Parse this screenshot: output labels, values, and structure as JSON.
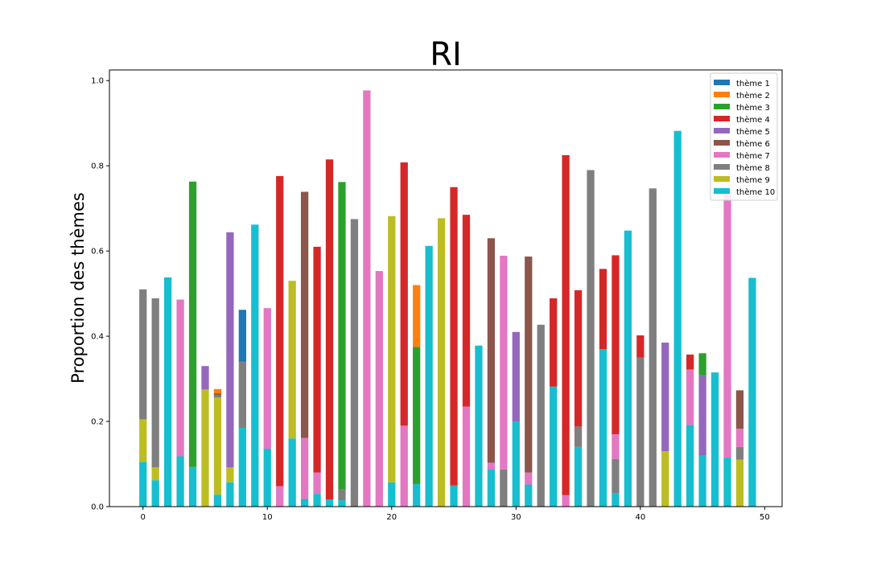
{
  "chart_data": {
    "type": "bar",
    "stacked": true,
    "title": "RI",
    "xlabel": "",
    "ylabel": "Proportion des thèmes",
    "xlim": [
      -2.7,
      51.4
    ],
    "ylim": [
      0,
      1.025
    ],
    "xticks": [
      0,
      10,
      20,
      30,
      40,
      50
    ],
    "yticks": [
      0.0,
      0.2,
      0.4,
      0.6,
      0.8,
      1.0
    ],
    "ytick_labels": [
      "0.0",
      "0.2",
      "0.4",
      "0.6",
      "0.8",
      "1.0"
    ],
    "grid": false,
    "legend": "top-right",
    "x": [
      0,
      1,
      2,
      3,
      4,
      5,
      6,
      7,
      8,
      9,
      10,
      11,
      12,
      13,
      14,
      15,
      16,
      17,
      18,
      19,
      20,
      21,
      22,
      23,
      24,
      25,
      26,
      27,
      28,
      29,
      30,
      31,
      32,
      33,
      34,
      35,
      36,
      37,
      38,
      39,
      40,
      41,
      42,
      43,
      44,
      45,
      46,
      47,
      48,
      49
    ],
    "series": [
      {
        "name": "thème 10",
        "color": "#17becf",
        "values": [
          0.105,
          0.062,
          0.538,
          0.118,
          0.093,
          0,
          0.028,
          0.057,
          0.185,
          0.662,
          0.136,
          0,
          0.16,
          0.018,
          0.03,
          0.017,
          0.015,
          0,
          0,
          0,
          0.057,
          0,
          0.053,
          0.612,
          0,
          0.05,
          0,
          0.378,
          0.088,
          0,
          0.2,
          0.052,
          0,
          0.282,
          0,
          0.14,
          0,
          0.37,
          0.032,
          0.648,
          0,
          0,
          0,
          0.882,
          0.192,
          0.12,
          0.315,
          0.115,
          0,
          0.537
        ]
      },
      {
        "name": "thème 9",
        "color": "#bcbd22",
        "values": [
          0.1,
          0.03,
          0,
          0,
          0,
          0.275,
          0.228,
          0.035,
          0,
          0,
          0,
          0,
          0.37,
          0,
          0,
          0,
          0,
          0,
          0,
          0,
          0.625,
          0,
          0,
          0,
          0.677,
          0,
          0,
          0,
          0,
          0,
          0,
          0,
          0,
          0,
          0,
          0,
          0,
          0,
          0,
          0,
          0,
          0,
          0.13,
          0,
          0,
          0,
          0,
          0,
          0.11,
          0
        ]
      },
      {
        "name": "thème 8",
        "color": "#7f7f7f",
        "values": [
          0.305,
          0.397,
          0,
          0,
          0,
          0,
          0.005,
          0,
          0.155,
          0,
          0,
          0,
          0,
          0,
          0,
          0,
          0.025,
          0.675,
          0,
          0,
          0,
          0,
          0,
          0,
          0,
          0,
          0,
          0,
          0,
          0.087,
          0,
          0,
          0.427,
          0,
          0,
          0.048,
          0.79,
          0,
          0.08,
          0,
          0.35,
          0.747,
          0,
          0,
          0,
          0,
          0,
          0,
          0.03,
          0
        ]
      },
      {
        "name": "thème 7",
        "color": "#e377c2",
        "values": [
          0,
          0,
          0,
          0.368,
          0,
          0,
          0,
          0,
          0,
          0,
          0.33,
          0.048,
          0,
          0.143,
          0.05,
          0,
          0,
          0,
          0.977,
          0.553,
          0,
          0.19,
          0,
          0,
          0,
          0,
          0.235,
          0,
          0.015,
          0.502,
          0,
          0.028,
          0,
          0,
          0.027,
          0,
          0,
          0,
          0.058,
          0,
          0,
          0,
          0,
          0,
          0.13,
          0,
          0,
          0.62,
          0.043,
          0
        ]
      },
      {
        "name": "thème 6",
        "color": "#8c564b",
        "values": [
          0,
          0,
          0,
          0,
          0,
          0,
          0.005,
          0,
          0,
          0,
          0,
          0,
          0,
          0.578,
          0,
          0,
          0,
          0,
          0,
          0,
          0,
          0,
          0,
          0,
          0,
          0,
          0,
          0,
          0.527,
          0,
          0,
          0.507,
          0,
          0,
          0,
          0,
          0,
          0,
          0,
          0,
          0,
          0,
          0,
          0,
          0,
          0,
          0,
          0,
          0.09,
          0
        ]
      },
      {
        "name": "thème 5",
        "color": "#9467bd",
        "values": [
          0,
          0,
          0,
          0,
          0,
          0.055,
          0,
          0.552,
          0,
          0,
          0,
          0,
          0,
          0,
          0,
          0,
          0,
          0,
          0,
          0,
          0,
          0,
          0,
          0,
          0,
          0,
          0,
          0,
          0,
          0,
          0.21,
          0,
          0,
          0,
          0,
          0,
          0,
          0,
          0,
          0,
          0,
          0,
          0.255,
          0,
          0,
          0.188,
          0,
          0,
          0,
          0
        ]
      },
      {
        "name": "thème 4",
        "color": "#d62728",
        "values": [
          0,
          0,
          0,
          0,
          0,
          0,
          0,
          0,
          0,
          0,
          0,
          0.728,
          0,
          0,
          0.53,
          0.798,
          0,
          0,
          0,
          0,
          0,
          0.618,
          0,
          0,
          0,
          0.7,
          0.45,
          0,
          0,
          0,
          0,
          0,
          0,
          0.207,
          0.798,
          0.32,
          0,
          0.188,
          0.42,
          0,
          0.052,
          0,
          0,
          0,
          0.035,
          0,
          0,
          0,
          0,
          0
        ]
      },
      {
        "name": "thème 3",
        "color": "#2ca02c",
        "values": [
          0,
          0,
          0,
          0,
          0.67,
          0,
          0,
          0,
          0,
          0,
          0,
          0,
          0,
          0,
          0,
          0,
          0.722,
          0,
          0,
          0,
          0,
          0,
          0.322,
          0,
          0,
          0,
          0,
          0,
          0,
          0,
          0,
          0,
          0,
          0,
          0,
          0,
          0,
          0,
          0,
          0,
          0,
          0,
          0,
          0,
          0,
          0.052,
          0,
          0,
          0,
          0
        ]
      },
      {
        "name": "thème 2",
        "color": "#ff7f0e",
        "values": [
          0,
          0,
          0,
          0,
          0,
          0,
          0.01,
          0,
          0,
          0,
          0,
          0,
          0,
          0,
          0,
          0,
          0,
          0,
          0,
          0,
          0,
          0,
          0.145,
          0,
          0,
          0,
          0,
          0,
          0,
          0,
          0,
          0,
          0,
          0,
          0,
          0,
          0,
          0,
          0,
          0,
          0,
          0,
          0,
          0,
          0,
          0,
          0,
          0,
          0,
          0
        ]
      },
      {
        "name": "thème 1",
        "color": "#1f77b4",
        "values": [
          0,
          0,
          0,
          0,
          0,
          0,
          0,
          0,
          0.122,
          0,
          0,
          0,
          0,
          0,
          0,
          0,
          0,
          0,
          0,
          0,
          0,
          0,
          0,
          0,
          0,
          0,
          0,
          0,
          0,
          0,
          0,
          0,
          0,
          0,
          0,
          0,
          0,
          0,
          0,
          0,
          0,
          0,
          0,
          0,
          0,
          0,
          0,
          0,
          0,
          0
        ]
      }
    ],
    "legend_entries": [
      {
        "name": "thème 1",
        "color": "#1f77b4"
      },
      {
        "name": "thème 2",
        "color": "#ff7f0e"
      },
      {
        "name": "thème 3",
        "color": "#2ca02c"
      },
      {
        "name": "thème 4",
        "color": "#d62728"
      },
      {
        "name": "thème 5",
        "color": "#9467bd"
      },
      {
        "name": "thème 6",
        "color": "#8c564b"
      },
      {
        "name": "thème 7",
        "color": "#e377c2"
      },
      {
        "name": "thème 8",
        "color": "#7f7f7f"
      },
      {
        "name": "thème 9",
        "color": "#bcbd22"
      },
      {
        "name": "thème 10",
        "color": "#17becf"
      }
    ]
  }
}
